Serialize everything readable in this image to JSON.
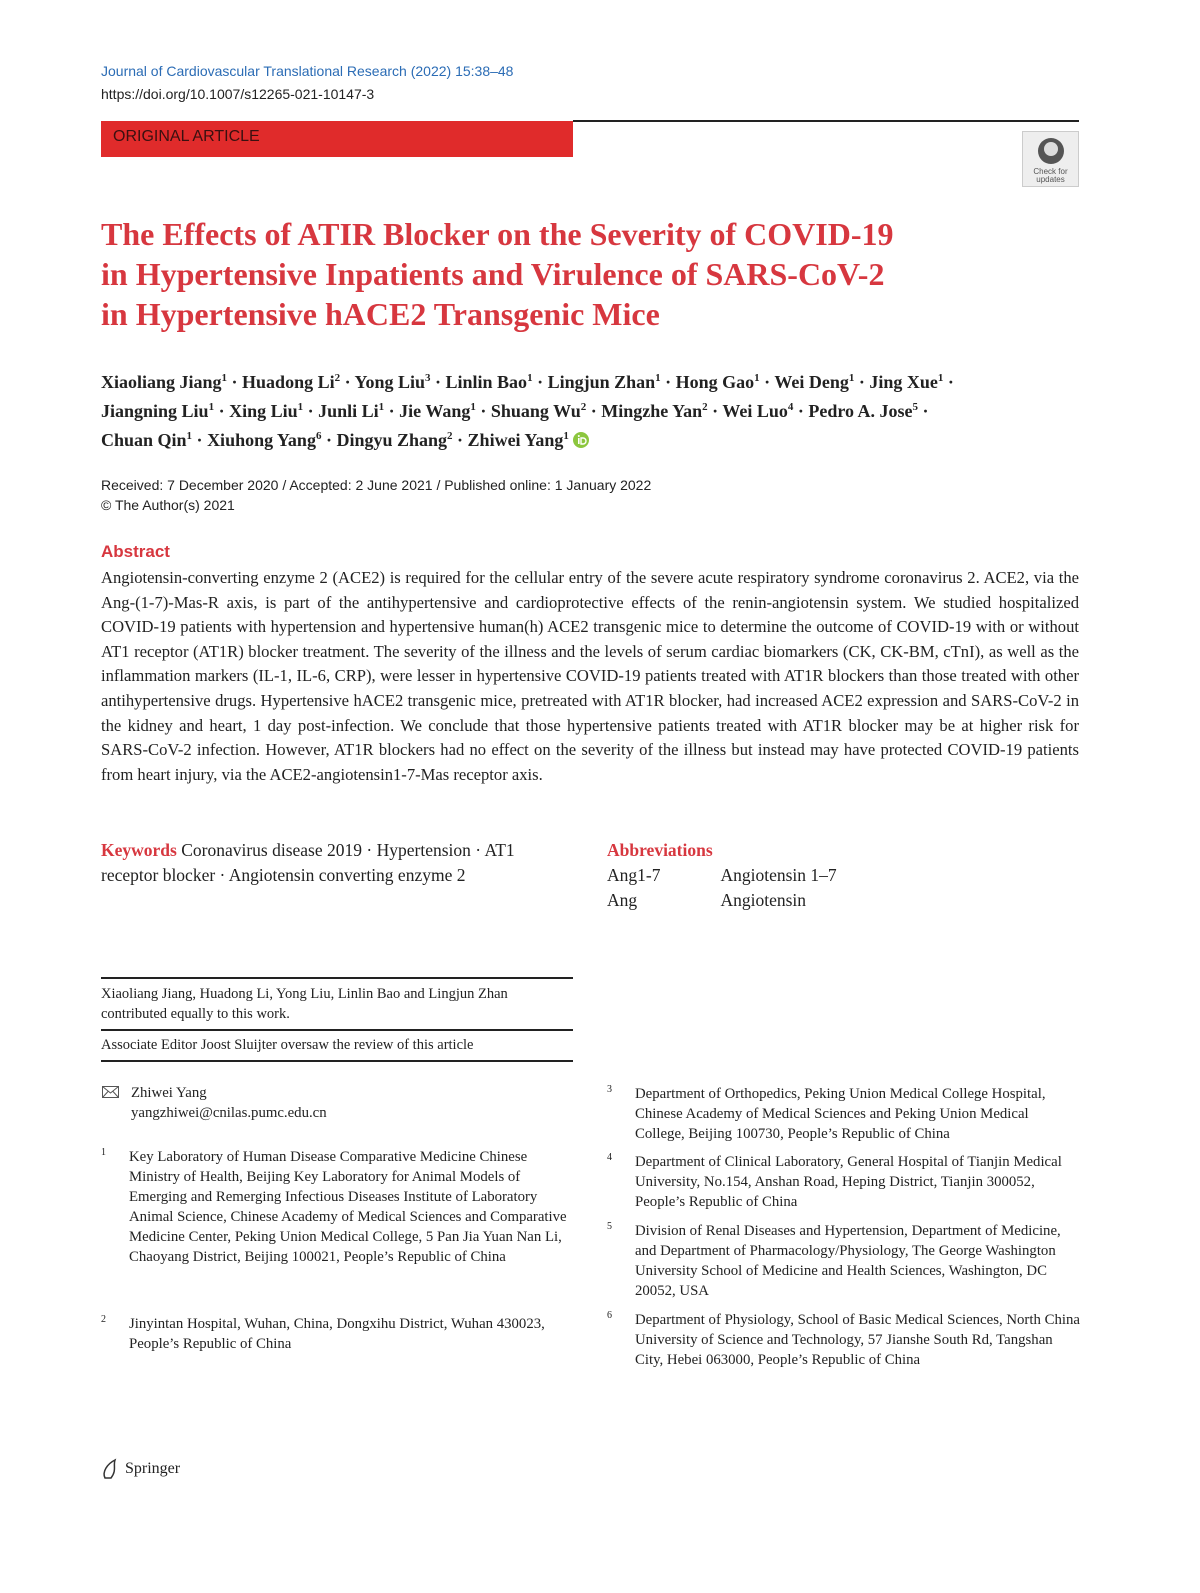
{
  "header": {
    "journal": "Journal of Cardiovascular Translational Research (2022) 15:38–48",
    "doi": "https://doi.org/10.1007/s12265-021-10147-3",
    "section": "ORIGINAL ARTICLE",
    "badge": [
      "Check for",
      "updates"
    ]
  },
  "title": [
    "The Effects of ATIR Blocker on the Severity of COVID-19",
    "in Hypertensive Inpatients and Virulence of SARS-CoV-2",
    "in Hypertensive hACE2 Transgenic Mice"
  ],
  "separator": "·",
  "authors": [
    {
      "name": "Xiaoliang Jiang",
      "aff": "1"
    },
    {
      "name": "Huadong Li",
      "aff": "2"
    },
    {
      "name": "Yong Liu",
      "aff": "3"
    },
    {
      "name": "Linlin Bao",
      "aff": "1"
    },
    {
      "name": "Lingjun Zhan",
      "aff": "1"
    },
    {
      "name": "Hong Gao",
      "aff": "1"
    },
    {
      "name": "Wei Deng",
      "aff": "1"
    },
    {
      "name": "Jing Xue",
      "aff": "1"
    },
    {
      "name": "Jiangning Liu",
      "aff": "1"
    },
    {
      "name": "Xing Liu",
      "aff": "1"
    },
    {
      "name": "Junli Li",
      "aff": "1"
    },
    {
      "name": "Jie Wang",
      "aff": "1"
    },
    {
      "name": "Shuang Wu",
      "aff": "2"
    },
    {
      "name": "Mingzhe Yan",
      "aff": "2"
    },
    {
      "name": "Wei Luo",
      "aff": "4"
    },
    {
      "name": "Pedro A. Jose",
      "aff": "5"
    },
    {
      "name": "Chuan Qin",
      "aff": "1"
    },
    {
      "name": "Xiuhong Yang",
      "aff": "6"
    },
    {
      "name": "Dingyu Zhang",
      "aff": "2"
    },
    {
      "name": "Zhiwei Yang",
      "aff": "1"
    }
  ],
  "dates": "Received: 7 December 2020 / Accepted: 2 June 2021 / Published online: 1 January 2022",
  "copyright": "© The Author(s) 2021",
  "abstract": {
    "heading": "Abstract",
    "text": "Angiotensin-converting enzyme 2 (ACE2) is required for the cellular entry of the severe acute respiratory syndrome coronavirus 2. ACE2, via the Ang-(1-7)-Mas-R axis, is part of the antihypertensive and cardioprotective effects of the renin-angiotensin system. We studied hospitalized COVID-19 patients with hypertension and hypertensive human(h) ACE2 transgenic mice to determine the outcome of COVID-19 with or without AT1 receptor (AT1R) blocker treatment. The severity of the illness and the levels of serum cardiac biomarkers (CK, CK-BM, cTnI), as well as the inflammation markers (IL-1, IL-6, CRP), were lesser in hypertensive COVID-19 patients treated with AT1R blockers than those treated with other antihypertensive drugs. Hypertensive hACE2 transgenic mice, pretreated with AT1R blocker, had increased ACE2 expression and SARS-CoV-2 in the kidney and heart, 1 day post-infection. We conclude that those hypertensive patients treated with AT1R blocker may be at higher risk for SARS-CoV-2 infection. However, AT1R blockers had no effect on the severity of the illness but instead may have protected COVID-19 patients from heart injury, via the ACE2-angiotensin1-7-Mas receptor axis."
  },
  "keywords": {
    "label": "Keywords",
    "terms": [
      "Coronavirus disease 2019",
      "Hypertension",
      "AT1 receptor blocker",
      "Angiotensin converting enzyme 2"
    ]
  },
  "abbreviations": {
    "heading": "Abbreviations",
    "rows": [
      [
        "Ang1-7",
        "Angiotensin 1–7"
      ],
      [
        "Ang",
        "Angiotensin"
      ]
    ]
  },
  "notes": [
    "Xiaoliang Jiang, Huadong Li, Yong Liu, Linlin Bao and Lingjun Zhan contributed equally to this work.",
    "Associate Editor Joost Sluijter oversaw the review of this article"
  ],
  "corresponding": {
    "name": "Zhiwei Yang",
    "email": "yangzhiwei@cnilas.pumc.edu.cn"
  },
  "affiliations": [
    {
      "num": "1",
      "text": "Key Laboratory of Human Disease Comparative Medicine Chinese Ministry of Health, Beijing Key Laboratory for Animal Models of Emerging and Remerging Infectious Diseases Institute of Laboratory Animal Science, Chinese Academy of Medical Sciences and Comparative Medicine Center, Peking Union Medical College, 5 Pan Jia Yuan Nan Li, Chaoyang District, Beijing 100021, People’s Republic of China"
    },
    {
      "num": "2",
      "text": "Jinyintan Hospital, Wuhan, China, Dongxihu District, Wuhan 430023, People’s Republic of China"
    },
    {
      "num": "3",
      "text": "Department of Orthopedics, Peking Union Medical College Hospital, Chinese Academy of Medical Sciences and Peking Union Medical College, Beijing 100730, People’s Republic of China"
    },
    {
      "num": "4",
      "text": "Department of Clinical Laboratory, General Hospital of Tianjin Medical University, No.154, Anshan Road, Heping District, Tianjin 300052, People’s Republic of China"
    },
    {
      "num": "5",
      "text": "Division of Renal Diseases and Hypertension, Department of Medicine, and Department of Pharmacology/Physiology, The George Washington University School of Medicine and Health Sciences, Washington, DC 20052, USA"
    },
    {
      "num": "6",
      "text": "Department of Physiology, School of Basic Medical Sciences, North China University of Science and Technology, 57 Jianshe South Rd, Tangshan City, Hebei 063000, People’s Republic of China"
    }
  ],
  "footer": "Springer"
}
